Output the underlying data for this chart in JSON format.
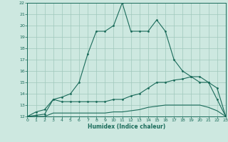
{
  "xlabel": "Humidex (Indice chaleur)",
  "background_color": "#cde8e0",
  "grid_color": "#a0c8bc",
  "line_color": "#1a6b5a",
  "xlim": [
    0,
    23
  ],
  "ylim": [
    12,
    22
  ],
  "xticks": [
    0,
    1,
    2,
    3,
    4,
    5,
    6,
    7,
    8,
    9,
    10,
    11,
    12,
    13,
    14,
    15,
    16,
    17,
    18,
    19,
    20,
    21,
    22,
    23
  ],
  "yticks": [
    12,
    13,
    14,
    15,
    16,
    17,
    18,
    19,
    20,
    21,
    22
  ],
  "line1_x": [
    0,
    1,
    2,
    3,
    4,
    5,
    6,
    7,
    8,
    9,
    10,
    11,
    12,
    13,
    14,
    15,
    16,
    17,
    18,
    19,
    20,
    21,
    22,
    23
  ],
  "line1_y": [
    12.0,
    12.4,
    12.6,
    13.5,
    13.7,
    14.0,
    15.0,
    17.5,
    19.5,
    19.5,
    20.0,
    22.0,
    19.5,
    19.5,
    19.5,
    20.5,
    19.5,
    17.0,
    16.0,
    15.5,
    15.0,
    15.0,
    13.5,
    12.0
  ],
  "line2_x": [
    0,
    1,
    2,
    3,
    4,
    5,
    6,
    7,
    8,
    9,
    10,
    11,
    12,
    13,
    14,
    15,
    16,
    17,
    18,
    19,
    20,
    21,
    22,
    23
  ],
  "line2_y": [
    12.0,
    12.1,
    12.2,
    13.5,
    13.3,
    13.3,
    13.3,
    13.3,
    13.3,
    13.3,
    13.5,
    13.5,
    13.8,
    14.0,
    14.5,
    15.0,
    15.0,
    15.2,
    15.3,
    15.5,
    15.5,
    15.0,
    14.5,
    12.0
  ],
  "line3_x": [
    0,
    1,
    2,
    3,
    4,
    5,
    6,
    7,
    8,
    9,
    10,
    11,
    12,
    13,
    14,
    15,
    16,
    17,
    18,
    19,
    20,
    21,
    22,
    23
  ],
  "line3_y": [
    12.0,
    12.0,
    12.0,
    12.3,
    12.3,
    12.3,
    12.3,
    12.3,
    12.3,
    12.3,
    12.4,
    12.4,
    12.5,
    12.6,
    12.8,
    12.9,
    13.0,
    13.0,
    13.0,
    13.0,
    13.0,
    12.8,
    12.5,
    12.0
  ]
}
